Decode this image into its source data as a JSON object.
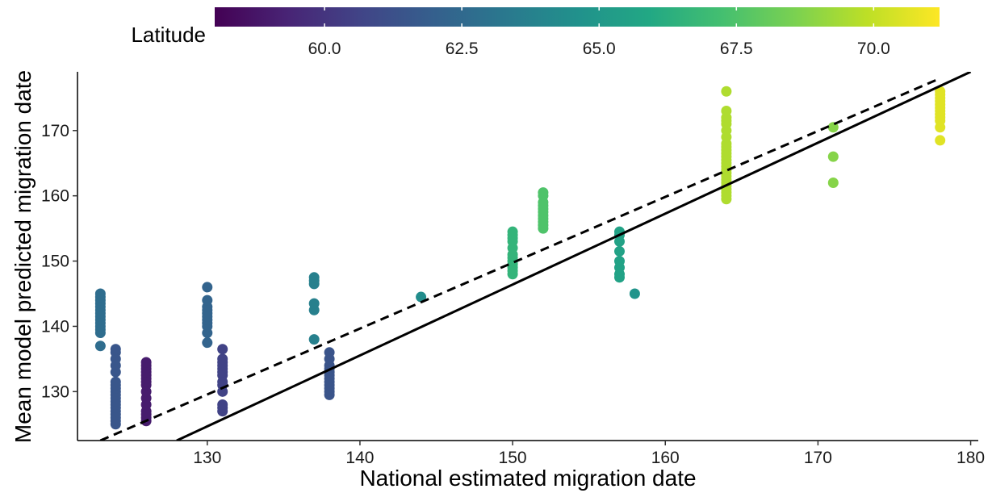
{
  "chart_data": {
    "type": "scatter",
    "title": "",
    "xlabel": "National estimated migration date",
    "ylabel": "Mean model predicted migration date",
    "xlim": [
      121.5,
      180.5
    ],
    "ylim": [
      122.5,
      179
    ],
    "x_ticks": [
      130,
      140,
      150,
      160,
      170,
      180
    ],
    "y_ticks": [
      130,
      140,
      150,
      160,
      170
    ],
    "grid": false,
    "legend": {
      "title": "Latitude",
      "type": "colorbar",
      "placement": "top",
      "range": [
        58,
        71.2
      ],
      "ticks": [
        "60.0",
        "62.5",
        "65.0",
        "67.5",
        "70.0"
      ],
      "colors": [
        "#440154",
        "#3b528b",
        "#21918c",
        "#5ec962",
        "#fde725"
      ]
    },
    "reference_lines": [
      {
        "style": "solid",
        "color": "#000000",
        "x": [
          128,
          180
        ],
        "y": [
          122.5,
          179
        ]
      },
      {
        "style": "dashed",
        "color": "#000000",
        "x": [
          123,
          178
        ],
        "y": [
          122.5,
          178
        ]
      }
    ],
    "groups": [
      {
        "x": 123,
        "latitude": 62.7,
        "y": [
          137,
          139,
          139.5,
          140,
          140.5,
          141,
          141.5,
          142,
          142.5,
          143,
          143.5,
          144,
          144.5,
          145
        ]
      },
      {
        "x": 124,
        "latitude": 61.5,
        "y": [
          125,
          125.5,
          126,
          126.5,
          127,
          127.5,
          128,
          128.5,
          129,
          129.5,
          130,
          130.5,
          131,
          131.5,
          133,
          134,
          135,
          136,
          136.5
        ]
      },
      {
        "x": 126,
        "latitude": 59.0,
        "y": [
          125.5,
          126,
          126.5,
          127,
          128,
          129,
          130,
          131,
          131.5,
          132,
          132.5,
          133,
          133.5,
          134,
          134.5
        ]
      },
      {
        "x": 130,
        "latitude": 62.2,
        "y": [
          137.5,
          139,
          140,
          140.5,
          141,
          141.5,
          142,
          142.5,
          143,
          144,
          146
        ]
      },
      {
        "x": 131,
        "latitude": 60.6,
        "y": [
          127,
          127.5,
          128,
          130,
          131,
          131.5,
          132.5,
          133,
          133.5,
          134,
          134.5,
          135,
          136.5
        ]
      },
      {
        "x": 137,
        "latitude": 63.7,
        "y": [
          138,
          142.5,
          143.5,
          146.5,
          147,
          147.5
        ]
      },
      {
        "x": 138,
        "latitude": 61.4,
        "y": [
          129.5,
          130,
          130.5,
          131,
          131.5,
          132,
          132.5,
          133,
          133.5,
          134,
          135,
          136
        ]
      },
      {
        "x": 144,
        "latitude": 64.4,
        "y": [
          144.5
        ]
      },
      {
        "x": 150,
        "latitude": 66.6,
        "y": [
          148,
          148.5,
          149,
          149.5,
          150,
          150.5,
          151,
          152,
          153,
          153.5,
          154,
          154.5
        ]
      },
      {
        "x": 152,
        "latitude": 67.5,
        "y": [
          155,
          155.5,
          156,
          156.5,
          157,
          157.5,
          158,
          158.5,
          159,
          160,
          160.5
        ]
      },
      {
        "x": 157,
        "latitude": 65.6,
        "y": [
          147.5,
          148,
          149,
          150,
          151.5,
          153,
          154,
          154.5
        ]
      },
      {
        "x": 158,
        "latitude": 64.8,
        "y": [
          145
        ]
      },
      {
        "x": 164,
        "latitude": 69.6,
        "y": [
          159.5,
          160,
          160.5,
          161,
          161.5,
          162,
          162.5,
          163,
          163.5,
          164,
          164.5,
          165,
          165.5,
          166,
          166.5,
          167,
          167.5,
          168,
          169,
          170,
          171,
          171.5,
          172,
          173,
          176
        ]
      },
      {
        "x": 171,
        "latitude": 68.8,
        "y": [
          162,
          166,
          170.5
        ]
      },
      {
        "x": 178,
        "latitude": 70.6,
        "y": [
          168.5,
          170.5,
          171.5,
          172,
          172.5,
          173,
          173.5,
          174,
          174.5,
          175,
          175.5,
          176
        ]
      }
    ]
  }
}
